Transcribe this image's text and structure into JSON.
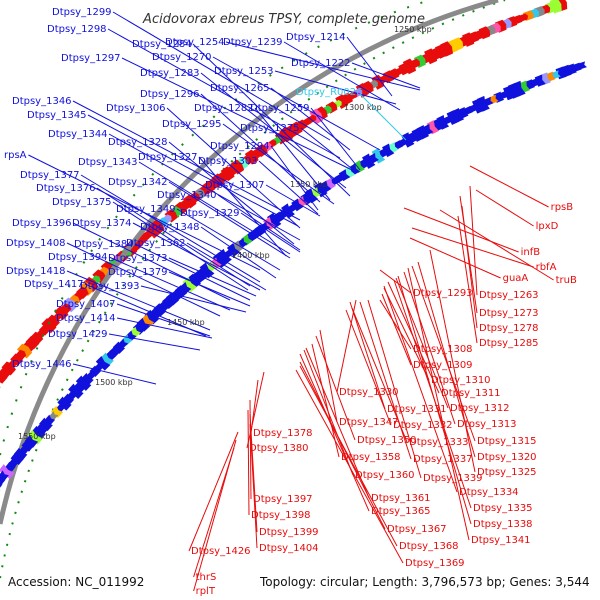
{
  "title": "Acidovorax ebreus TPSY, complete genome",
  "accession": "Accession: NC_011992",
  "topology": "Topology: circular; Length: 3,796,573 bp; Genes: 3,544",
  "colors": {
    "forward": "#1111dd",
    "reverse": "#e80c0c",
    "rna": "#33c8e8",
    "backbone": "#777777",
    "gc": "#118a11"
  },
  "scale_labels": [
    "1250 kbp",
    "1300 kbp",
    "1350 kbp",
    "1400 kbp",
    "1450 kbp",
    "1500 kbp",
    "1550 kbp"
  ],
  "forward_labels": [
    "Dtpsy_1299",
    "Dtpsy_1298",
    "Dtpsy_1284",
    "Dtpsy_1297",
    "Dtpsy_1254",
    "Dtpsy_1270",
    "Dtpsy_1239",
    "Dtpsy_1214",
    "Dtpsy_1283",
    "Dtpsy_1253",
    "Dtpsy_1222",
    "Dtpsy_1296",
    "Dtpsy_1265",
    "Dtpsy_1346",
    "Dtpsy_1306",
    "Dtpsy_1282",
    "Dtpsy_1259",
    "Dtpsy_1345",
    "Dtpsy_1295",
    "Dtpsy_1275",
    "Dtpsy_1344",
    "Dtpsy_1328",
    "Dtpsy_1294",
    "rpsA",
    "Dtpsy_1343",
    "Dtpsy_1327",
    "Dtpsy_1303",
    "Dtpsy_1377",
    "Dtpsy_1342",
    "Dtpsy_1376",
    "Dtpsy_1340",
    "Dtpsy_1307",
    "Dtpsy_1375",
    "Dtpsy_1349",
    "Dtpsy_1329",
    "Dtpsy_1396",
    "Dtpsy_1374",
    "Dtpsy_1348",
    "Dtpsy_1408",
    "Dtpsy_1384",
    "Dtpsy_1362",
    "Dtpsy_1394",
    "Dtpsy_1373",
    "Dtpsy_1418",
    "Dtpsy_1379",
    "Dtpsy_1417",
    "Dtpsy_1393",
    "Dtpsy_1407",
    "Dtpsy_1414",
    "Dtpsy_1429",
    "Dtpsy_1446"
  ],
  "rna_labels": [
    "Dtpsy_R0026"
  ],
  "reverse_labels": [
    "rpsB",
    "lpxD",
    "infB",
    "rbfA",
    "guaA",
    "truB",
    "Dtpsy_1263",
    "Dtpsy_1293",
    "Dtpsy_1273",
    "Dtpsy_1278",
    "Dtpsy_1285",
    "Dtpsy_1308",
    "Dtpsy_1309",
    "Dtpsy_1310",
    "Dtpsy_1330",
    "Dtpsy_1311",
    "Dtpsy_1331",
    "Dtpsy_1312",
    "Dtpsy_1347",
    "Dtpsy_1332",
    "Dtpsy_1313",
    "Dtpsy_1378",
    "Dtpsy_1350",
    "Dtpsy_1333",
    "Dtpsy_1315",
    "Dtpsy_1380",
    "Dtpsy_1358",
    "Dtpsy_1337",
    "Dtpsy_1320",
    "Dtpsy_1360",
    "Dtpsy_1339",
    "Dtpsy_1325",
    "Dtpsy_1361",
    "Dtpsy_1334",
    "Dtpsy_1397",
    "Dtpsy_1365",
    "Dtpsy_1335",
    "Dtpsy_1398",
    "Dtpsy_1338",
    "Dtpsy_1367",
    "Dtpsy_1399",
    "Dtpsy_1341",
    "Dtpsy_1404",
    "Dtpsy_1368",
    "Dtpsy_1369",
    "Dtpsy_1426",
    "thrS",
    "rplT"
  ]
}
